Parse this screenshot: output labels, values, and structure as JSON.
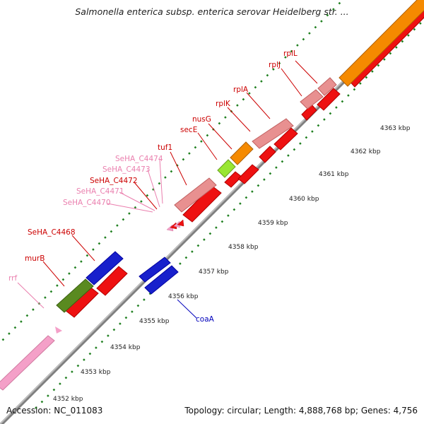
{
  "title": "Salmonella enterica subsp. enterica serovar Heidelberg str. ...",
  "footer": {
    "accession": "Accession: NC_011083",
    "summary": "Topology: circular; Length: 4,888,768 bp; Genes: 4,756"
  },
  "colors": {
    "backbone": "#a6a6a6",
    "tick": "#208020",
    "cds_red": "#ee1111",
    "cds_pink": "#e89090",
    "cds_blue": "#1820cc",
    "cds_orange": "#f58a00",
    "cds_olive": "#5a8a20",
    "cds_lime": "#99e632",
    "rna_pink": "#f4a0c8",
    "label_red": "#cc0000",
    "label_pink": "#ea7fae",
    "label_blue": "#0000bb"
  },
  "scale_labels": [
    "4352 kbp",
    "4353 kbp",
    "4354 kbp",
    "4355 kbp",
    "4356 kbp",
    "4357 kbp",
    "4358 kbp",
    "4359 kbp",
    "4360 kbp",
    "4361 kbp",
    "4362 kbp",
    "4363 kbp"
  ],
  "gene_labels": {
    "rplL": "rplL",
    "rplJ": "rplJ",
    "rplA": "rplA",
    "rplK": "rplK",
    "nusG": "nusG",
    "secE": "secE",
    "tuf1": "tuf1",
    "SeHA_C4474": "SeHA_C4474",
    "SeHA_C4473": "SeHA_C4473",
    "SeHA_C4472": "SeHA_C4472",
    "SeHA_C4471": "SeHA_C4471",
    "SeHA_C4470": "SeHA_C4470",
    "SeHA_C4468": "SeHA_C4468",
    "murB": "murB",
    "rrf": "rrf",
    "coaA": "coaA"
  }
}
